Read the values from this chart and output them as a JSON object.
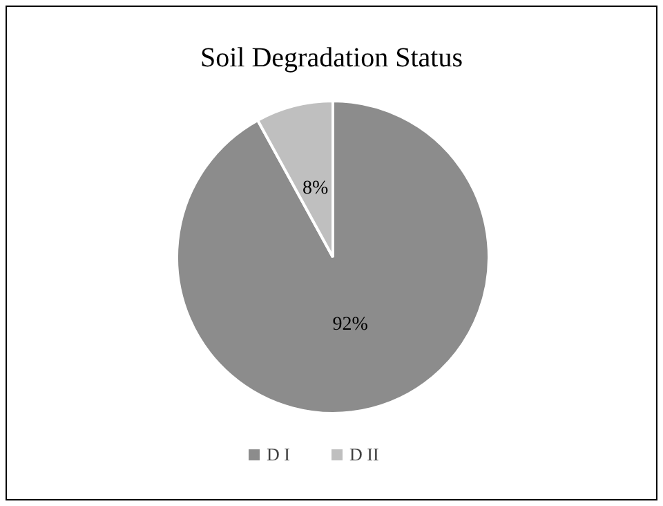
{
  "chart_data": {
    "type": "pie",
    "title": "Soil Degradation Status",
    "categories": [
      "D I",
      "D II"
    ],
    "values": [
      92,
      8
    ],
    "colors": [
      "#8c8c8c",
      "#bfbfbf"
    ],
    "value_labels": [
      "92%",
      "8%"
    ],
    "legend": "bottom"
  }
}
